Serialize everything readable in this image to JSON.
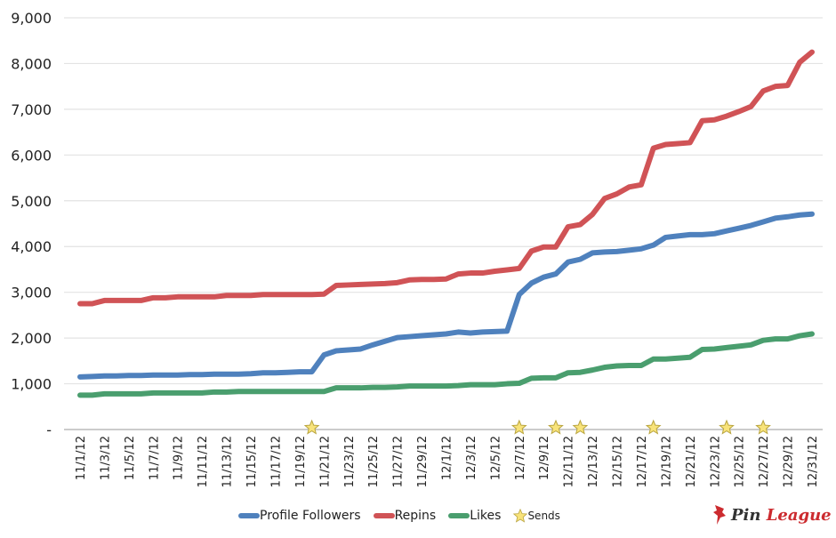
{
  "chart_data": {
    "type": "line",
    "title": "",
    "xlabel": "",
    "ylabel": "",
    "ylim": [
      0,
      9000
    ],
    "yticks": [
      0,
      1000,
      2000,
      3000,
      4000,
      5000,
      6000,
      7000,
      8000,
      9000
    ],
    "ytick_labels": [
      "-",
      "1,000",
      "2,000",
      "3,000",
      "4,000",
      "5,000",
      "6,000",
      "7,000",
      "8,000",
      "9,000"
    ],
    "grid": true,
    "legend_position": "bottom",
    "x": [
      "11/1/12",
      "11/2/12",
      "11/3/12",
      "11/4/12",
      "11/5/12",
      "11/6/12",
      "11/7/12",
      "11/8/12",
      "11/9/12",
      "11/10/12",
      "11/11/12",
      "11/12/12",
      "11/13/12",
      "11/14/12",
      "11/15/12",
      "11/16/12",
      "11/17/12",
      "11/18/12",
      "11/19/12",
      "11/20/12",
      "11/21/12",
      "11/22/12",
      "11/23/12",
      "11/24/12",
      "11/25/12",
      "11/26/12",
      "11/27/12",
      "11/28/12",
      "11/29/12",
      "11/30/12",
      "12/1/12",
      "12/2/12",
      "12/3/12",
      "12/4/12",
      "12/5/12",
      "12/6/12",
      "12/7/12",
      "12/8/12",
      "12/9/12",
      "12/10/12",
      "12/11/12",
      "12/12/12",
      "12/13/12",
      "12/14/12",
      "12/15/12",
      "12/16/12",
      "12/17/12",
      "12/18/12",
      "12/19/12",
      "12/20/12",
      "12/21/12",
      "12/22/12",
      "12/23/12",
      "12/24/12",
      "12/25/12",
      "12/26/12",
      "12/27/12",
      "12/28/12",
      "12/29/12",
      "12/30/12",
      "12/31/12"
    ],
    "series": [
      {
        "name": "Profile Followers",
        "color": "#4f81bd",
        "values": [
          1150,
          1160,
          1170,
          1170,
          1180,
          1180,
          1190,
          1190,
          1190,
          1200,
          1200,
          1210,
          1210,
          1210,
          1220,
          1240,
          1240,
          1250,
          1260,
          1260,
          1630,
          1720,
          1740,
          1760,
          1850,
          1930,
          2010,
          2030,
          2050,
          2070,
          2090,
          2130,
          2110,
          2130,
          2140,
          2150,
          2950,
          3200,
          3330,
          3400,
          3660,
          3720,
          3860,
          3880,
          3890,
          3920,
          3950,
          4030,
          4200,
          4230,
          4260,
          4260,
          4280,
          4340,
          4400,
          4460,
          4540,
          4620,
          4650,
          4690,
          4710
        ]
      },
      {
        "name": "Repins",
        "color": "#d05356",
        "values": [
          2750,
          2750,
          2820,
          2820,
          2820,
          2820,
          2880,
          2880,
          2900,
          2900,
          2900,
          2900,
          2930,
          2930,
          2930,
          2950,
          2950,
          2950,
          2950,
          2950,
          2960,
          3150,
          3160,
          3170,
          3180,
          3190,
          3210,
          3270,
          3280,
          3280,
          3290,
          3400,
          3420,
          3420,
          3460,
          3490,
          3520,
          3900,
          3990,
          3990,
          4430,
          4480,
          4700,
          5050,
          5150,
          5300,
          5350,
          6150,
          6230,
          6250,
          6270,
          6750,
          6770,
          6850,
          6950,
          7060,
          7400,
          7500,
          7520,
          8030,
          8250
        ]
      },
      {
        "name": "Likes",
        "color": "#4a9e6e",
        "values": [
          750,
          750,
          780,
          780,
          780,
          780,
          800,
          800,
          800,
          800,
          800,
          820,
          820,
          830,
          830,
          830,
          830,
          830,
          830,
          830,
          830,
          910,
          910,
          910,
          920,
          920,
          930,
          950,
          950,
          950,
          950,
          960,
          980,
          980,
          980,
          1000,
          1010,
          1120,
          1130,
          1130,
          1240,
          1250,
          1300,
          1360,
          1390,
          1400,
          1400,
          1540,
          1540,
          1560,
          1580,
          1750,
          1760,
          1790,
          1820,
          1850,
          1950,
          1980,
          1980,
          2050,
          2090
        ]
      }
    ],
    "sends": {
      "name": "Sends",
      "dates": [
        "11/20/12",
        "12/7/12",
        "12/10/12",
        "12/12/12",
        "12/18/12",
        "12/24/12",
        "12/27/12"
      ]
    }
  },
  "logo": {
    "text": "Pin League"
  }
}
